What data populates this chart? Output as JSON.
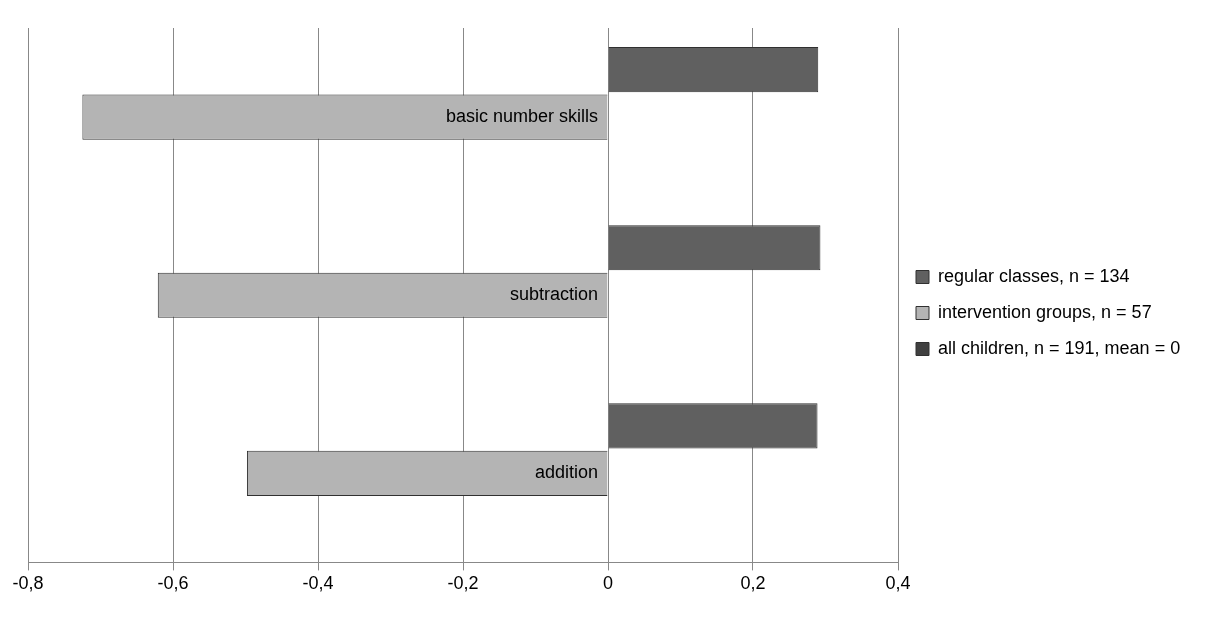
{
  "chart_data": {
    "type": "bar",
    "orientation": "horizontal",
    "categories": [
      "basic number skills",
      "subtraction",
      "addition"
    ],
    "series": [
      {
        "name": "regular classes, n = 134",
        "color": "#606060",
        "values": [
          0.29,
          0.293,
          0.289
        ]
      },
      {
        "name": "intervention groups, n = 57",
        "color": "#b4b4b4",
        "values": [
          -0.725,
          -0.621,
          -0.498
        ]
      },
      {
        "name": "all children, n = 191, mean = 0",
        "color": "#404040",
        "values": [
          0,
          0,
          0
        ]
      }
    ],
    "xlim": [
      -0.8,
      0.4
    ],
    "xticks": [
      {
        "value": -0.8,
        "label": "-0,8"
      },
      {
        "value": -0.6,
        "label": "-0,6"
      },
      {
        "value": -0.4,
        "label": "-0,4"
      },
      {
        "value": -0.2,
        "label": "-0,2"
      },
      {
        "value": 0,
        "label": "0"
      },
      {
        "value": 0.2,
        "label": "0,2"
      },
      {
        "value": 0.4,
        "label": "0,4"
      }
    ],
    "grid": "x",
    "legend": "right"
  }
}
